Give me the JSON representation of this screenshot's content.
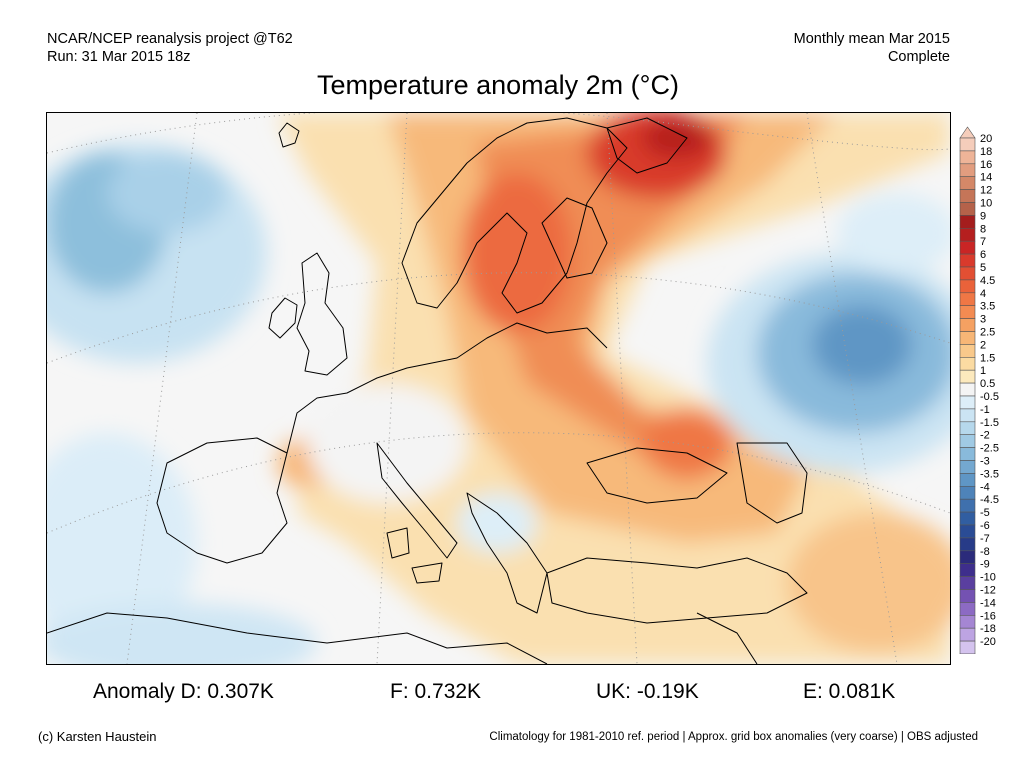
{
  "header": {
    "project": "NCAR/NCEP reanalysis project @T62",
    "run": "Run: 31 Mar 2015 18z",
    "period": "Monthly mean Mar 2015",
    "status": "Complete"
  },
  "title": "Temperature anomaly 2m (°C)",
  "colorbar": {
    "labels": [
      "20",
      "18",
      "16",
      "14",
      "12",
      "10",
      "9",
      "8",
      "7",
      "6",
      "5",
      "4.5",
      "4",
      "3.5",
      "3",
      "2.5",
      "2",
      "1.5",
      "1",
      "0.5",
      "-0.5",
      "-1",
      "-1.5",
      "-2",
      "-2.5",
      "-3",
      "-3.5",
      "-4",
      "-4.5",
      "-5",
      "-6",
      "-7",
      "-8",
      "-9",
      "-10",
      "-12",
      "-14",
      "-16",
      "-18",
      "-20"
    ],
    "colors": [
      "#f5cdbb",
      "#eeb498",
      "#e29d7f",
      "#d48868",
      "#c57558",
      "#b5624a",
      "#a41d1d",
      "#b51f1f",
      "#c92525",
      "#d93a2c",
      "#e24f33",
      "#ea623a",
      "#ef7745",
      "#f38b52",
      "#f5a162",
      "#f7b676",
      "#f9c98b",
      "#fbdba2",
      "#fce9bd",
      "#f4f4f4",
      "#ddeef8",
      "#cbe4f3",
      "#b6d8ec",
      "#a0cae4",
      "#89badb",
      "#74a8d0",
      "#5f96c5",
      "#4e83b9",
      "#3f70ad",
      "#315ea1",
      "#2a4c95",
      "#273b88",
      "#2b2b7b",
      "#3e2e8c",
      "#5a3f9f",
      "#7452b2",
      "#8c6ac3",
      "#a586d3",
      "#bda4e2",
      "#d4c3ee"
    ]
  },
  "stats": {
    "d": "Anomaly D: 0.307K",
    "f": "F: 0.732K",
    "uk": "UK: -0.19K",
    "e": "E: 0.081K"
  },
  "footer": {
    "credit": "(c) Karsten Haustein",
    "note": "Climatology for 1981-2010 ref. period | Approx. grid box anomalies (very coarse) | OBS adjusted"
  }
}
